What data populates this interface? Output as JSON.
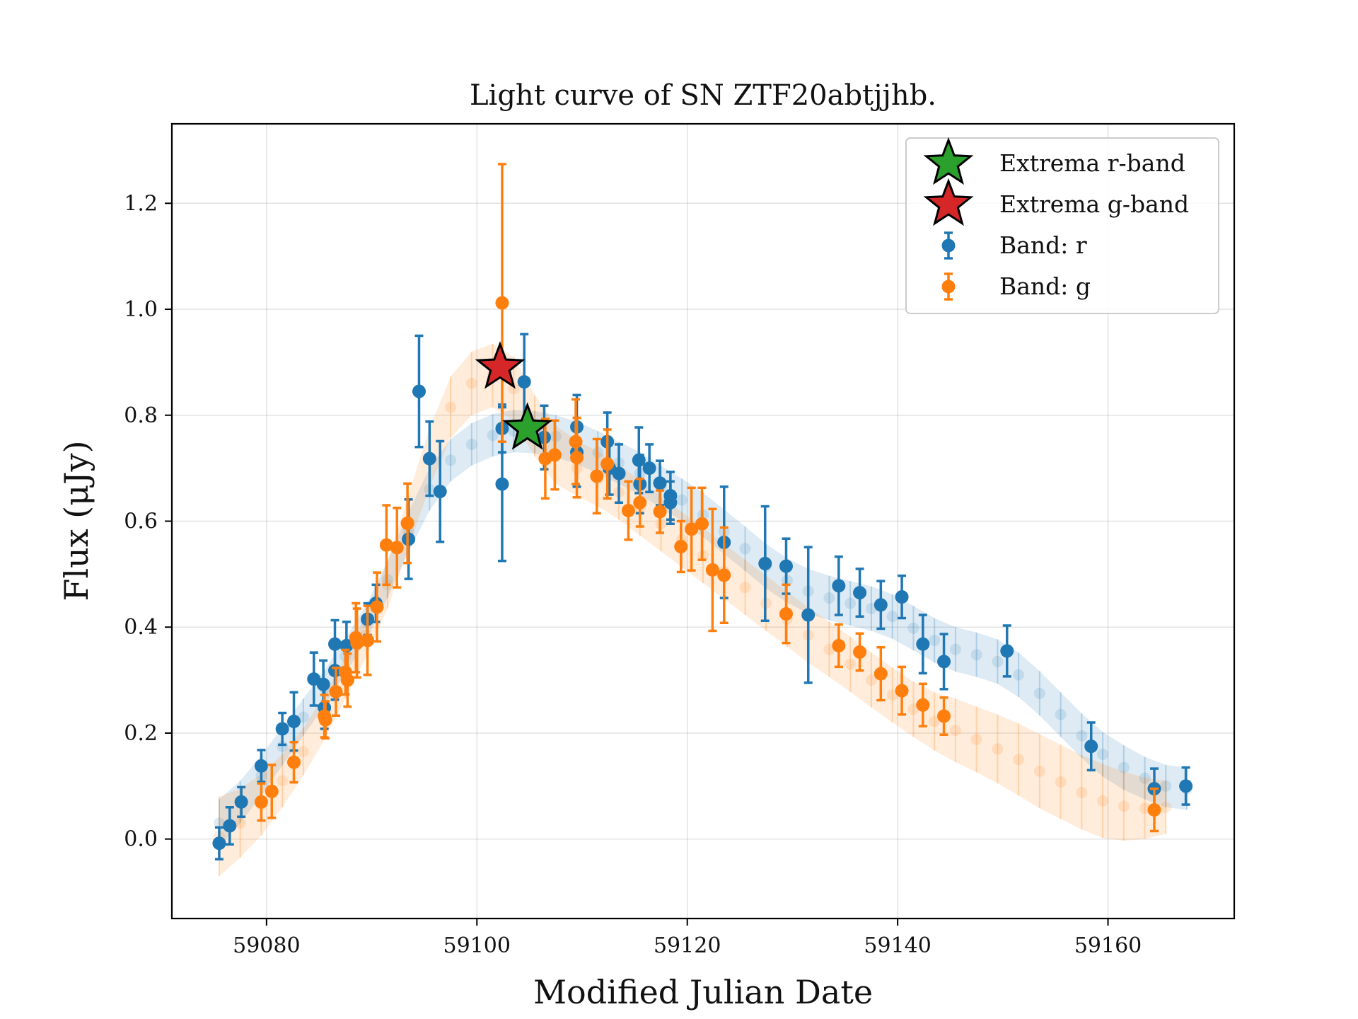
{
  "chart_data": {
    "type": "scatter",
    "title": "Light curve of SN ZTF20abtjjhb.",
    "xlabel": "Modified Julian Date",
    "ylabel": "Flux (μJy)",
    "xlim": [
      59071,
      59172
    ],
    "ylim": [
      -0.15,
      1.35
    ],
    "xticks": [
      59080,
      59100,
      59120,
      59140,
      59160
    ],
    "yticks": [
      0.0,
      0.2,
      0.4,
      0.6,
      0.8,
      1.0,
      1.2
    ],
    "xtick_labels": [
      "59080",
      "59100",
      "59120",
      "59140",
      "59160"
    ],
    "ytick_labels": [
      "0.0",
      "0.2",
      "0.4",
      "0.6",
      "0.8",
      "1.0",
      "1.2"
    ],
    "grid": true,
    "legend_position": "top-right",
    "colors": {
      "r": "#1f77b4",
      "g": "#ff7f0e",
      "extrema_r": "#2ca02c",
      "extrema_g": "#d62728"
    },
    "legend": [
      {
        "label": "Extrema r-band",
        "marker": "star",
        "color": "#2ca02c"
      },
      {
        "label": "Extrema g-band",
        "marker": "star",
        "color": "#d62728"
      },
      {
        "label": "Band: r",
        "marker": "errorbar",
        "color": "#1f77b4"
      },
      {
        "label": "Band: g",
        "marker": "errorbar",
        "color": "#ff7f0e"
      }
    ],
    "series": [
      {
        "name": "Band: r",
        "color": "#1f77b4",
        "points": [
          [
            59075.5,
            -0.008,
            0.03
          ],
          [
            59076.5,
            0.025,
            0.035
          ],
          [
            59077.6,
            0.07,
            0.028
          ],
          [
            59079.5,
            0.138,
            0.03
          ],
          [
            59081.5,
            0.208,
            0.03
          ],
          [
            59082.6,
            0.222,
            0.055
          ],
          [
            59084.5,
            0.302,
            0.05
          ],
          [
            59085.4,
            0.292,
            0.045
          ],
          [
            59085.5,
            0.248,
            0.04
          ],
          [
            59086.5,
            0.318,
            0.055
          ],
          [
            59086.5,
            0.368,
            0.045
          ],
          [
            59087.6,
            0.365,
            0.045
          ],
          [
            59089.6,
            0.415,
            0.03
          ],
          [
            59090.4,
            0.445,
            0.035
          ],
          [
            59093.5,
            0.566,
            0.075
          ],
          [
            59094.5,
            0.845,
            0.105
          ],
          [
            59095.5,
            0.718,
            0.07
          ],
          [
            59096.5,
            0.656,
            0.095
          ],
          [
            59102.4,
            0.775,
            0.045
          ],
          [
            59102.4,
            0.67,
            0.145
          ],
          [
            59104.5,
            0.863,
            0.09
          ],
          [
            59106.4,
            0.758,
            0.06
          ],
          [
            59109.5,
            0.778,
            0.06
          ],
          [
            59109.5,
            0.73,
            0.065
          ],
          [
            59112.4,
            0.75,
            0.055
          ],
          [
            59112.6,
            0.7,
            0.05
          ],
          [
            59113.5,
            0.69,
            0.055
          ],
          [
            59115.4,
            0.715,
            0.062
          ],
          [
            59115.5,
            0.67,
            0.055
          ],
          [
            59116.4,
            0.7,
            0.045
          ],
          [
            59117.4,
            0.672,
            0.042
          ],
          [
            59118.4,
            0.648,
            0.045
          ],
          [
            59118.4,
            0.635,
            0.04
          ],
          [
            59123.5,
            0.56,
            0.105
          ],
          [
            59127.4,
            0.52,
            0.108
          ],
          [
            59129.4,
            0.515,
            0.052
          ],
          [
            59131.5,
            0.423,
            0.128
          ],
          [
            59134.4,
            0.478,
            0.055
          ],
          [
            59136.4,
            0.465,
            0.045
          ],
          [
            59138.4,
            0.442,
            0.045
          ],
          [
            59140.4,
            0.457,
            0.04
          ],
          [
            59142.4,
            0.368,
            0.055
          ],
          [
            59144.4,
            0.335,
            0.052
          ],
          [
            59150.4,
            0.355,
            0.048
          ],
          [
            59158.4,
            0.175,
            0.045
          ],
          [
            59164.4,
            0.095,
            0.038
          ],
          [
            59167.4,
            0.1,
            0.035
          ]
        ]
      },
      {
        "name": "Band: g",
        "color": "#ff7f0e",
        "points": [
          [
            59079.5,
            0.07,
            0.035
          ],
          [
            59080.5,
            0.09,
            0.05
          ],
          [
            59082.6,
            0.145,
            0.038
          ],
          [
            59085.5,
            0.232,
            0.04
          ],
          [
            59085.6,
            0.225,
            0.035
          ],
          [
            59086.6,
            0.278,
            0.045
          ],
          [
            59087.5,
            0.315,
            0.042
          ],
          [
            59087.7,
            0.3,
            0.05
          ],
          [
            59088.5,
            0.38,
            0.065
          ],
          [
            59088.6,
            0.37,
            0.065
          ],
          [
            59089.6,
            0.375,
            0.065
          ],
          [
            59090.5,
            0.438,
            0.065
          ],
          [
            59091.4,
            0.555,
            0.075
          ],
          [
            59092.4,
            0.55,
            0.075
          ],
          [
            59093.4,
            0.596,
            0.075
          ],
          [
            59102.4,
            1.012,
            0.262
          ],
          [
            59106.5,
            0.718,
            0.075
          ],
          [
            59107.4,
            0.725,
            0.065
          ],
          [
            59109.4,
            0.75,
            0.08
          ],
          [
            59109.5,
            0.72,
            0.075
          ],
          [
            59111.4,
            0.685,
            0.07
          ],
          [
            59112.4,
            0.708,
            0.065
          ],
          [
            59114.4,
            0.62,
            0.055
          ],
          [
            59115.5,
            0.635,
            0.045
          ],
          [
            59117.4,
            0.618,
            0.04
          ],
          [
            59119.4,
            0.552,
            0.048
          ],
          [
            59120.4,
            0.585,
            0.078
          ],
          [
            59121.4,
            0.595,
            0.068
          ],
          [
            59122.4,
            0.508,
            0.115
          ],
          [
            59123.5,
            0.498,
            0.09
          ],
          [
            59129.4,
            0.425,
            0.055
          ],
          [
            59134.4,
            0.365,
            0.04
          ],
          [
            59136.4,
            0.353,
            0.035
          ],
          [
            59138.4,
            0.312,
            0.05
          ],
          [
            59140.4,
            0.28,
            0.045
          ],
          [
            59142.4,
            0.253,
            0.04
          ],
          [
            59144.4,
            0.232,
            0.035
          ],
          [
            59164.4,
            0.055,
            0.04
          ]
        ]
      }
    ],
    "models": [
      {
        "band": "r",
        "color": "#1f77b4",
        "points": [
          [
            59075.5,
            0.03,
            0.045
          ],
          [
            59077.5,
            0.07,
            0.04
          ],
          [
            59079.5,
            0.12,
            0.038
          ],
          [
            59081.5,
            0.175,
            0.036
          ],
          [
            59083.5,
            0.23,
            0.035
          ],
          [
            59085.5,
            0.285,
            0.034
          ],
          [
            59087.5,
            0.345,
            0.033
          ],
          [
            59089.5,
            0.41,
            0.033
          ],
          [
            59091.5,
            0.49,
            0.035
          ],
          [
            59093.5,
            0.58,
            0.038
          ],
          [
            59095.5,
            0.66,
            0.04
          ],
          [
            59097.5,
            0.715,
            0.04
          ],
          [
            59099.5,
            0.745,
            0.04
          ],
          [
            59101.5,
            0.762,
            0.04
          ],
          [
            59103.5,
            0.77,
            0.04
          ],
          [
            59105.5,
            0.768,
            0.04
          ],
          [
            59107.5,
            0.76,
            0.04
          ],
          [
            59109.5,
            0.748,
            0.04
          ],
          [
            59111.5,
            0.73,
            0.04
          ],
          [
            59113.5,
            0.71,
            0.04
          ],
          [
            59115.5,
            0.69,
            0.04
          ],
          [
            59117.5,
            0.665,
            0.04
          ],
          [
            59119.5,
            0.64,
            0.04
          ],
          [
            59121.5,
            0.612,
            0.042
          ],
          [
            59123.5,
            0.58,
            0.042
          ],
          [
            59125.5,
            0.548,
            0.042
          ],
          [
            59127.5,
            0.515,
            0.042
          ],
          [
            59129.5,
            0.488,
            0.042
          ],
          [
            59131.5,
            0.468,
            0.042
          ],
          [
            59133.5,
            0.455,
            0.042
          ],
          [
            59135.5,
            0.445,
            0.042
          ],
          [
            59137.5,
            0.435,
            0.042
          ],
          [
            59139.5,
            0.42,
            0.042
          ],
          [
            59141.5,
            0.398,
            0.042
          ],
          [
            59143.5,
            0.375,
            0.042
          ],
          [
            59145.5,
            0.358,
            0.042
          ],
          [
            59147.5,
            0.348,
            0.042
          ],
          [
            59149.5,
            0.335,
            0.042
          ],
          [
            59151.5,
            0.31,
            0.042
          ],
          [
            59153.5,
            0.275,
            0.042
          ],
          [
            59155.5,
            0.235,
            0.042
          ],
          [
            59157.5,
            0.195,
            0.042
          ],
          [
            59159.5,
            0.16,
            0.042
          ],
          [
            59161.5,
            0.135,
            0.042
          ],
          [
            59163.5,
            0.115,
            0.04
          ],
          [
            59165.5,
            0.1,
            0.04
          ],
          [
            59167.5,
            0.095,
            0.04
          ]
        ]
      },
      {
        "band": "g",
        "color": "#ff7f0e",
        "points": [
          [
            59075.5,
            0.005,
            0.075
          ],
          [
            59077.5,
            0.03,
            0.065
          ],
          [
            59079.5,
            0.065,
            0.058
          ],
          [
            59081.5,
            0.11,
            0.05
          ],
          [
            59083.5,
            0.165,
            0.045
          ],
          [
            59085.5,
            0.23,
            0.042
          ],
          [
            59087.5,
            0.305,
            0.04
          ],
          [
            59089.5,
            0.385,
            0.04
          ],
          [
            59091.5,
            0.48,
            0.045
          ],
          [
            59093.5,
            0.6,
            0.05
          ],
          [
            59095.5,
            0.72,
            0.055
          ],
          [
            59097.5,
            0.815,
            0.058
          ],
          [
            59099.5,
            0.86,
            0.06
          ],
          [
            59101.5,
            0.875,
            0.06
          ],
          [
            59103.5,
            0.85,
            0.06
          ],
          [
            59105.5,
            0.78,
            0.058
          ],
          [
            59107.5,
            0.725,
            0.055
          ],
          [
            59109.5,
            0.7,
            0.052
          ],
          [
            59111.5,
            0.68,
            0.052
          ],
          [
            59113.5,
            0.655,
            0.052
          ],
          [
            59115.5,
            0.625,
            0.052
          ],
          [
            59117.5,
            0.595,
            0.052
          ],
          [
            59119.5,
            0.565,
            0.052
          ],
          [
            59121.5,
            0.535,
            0.052
          ],
          [
            59123.5,
            0.505,
            0.052
          ],
          [
            59125.5,
            0.475,
            0.052
          ],
          [
            59127.5,
            0.445,
            0.052
          ],
          [
            59129.5,
            0.415,
            0.052
          ],
          [
            59131.5,
            0.385,
            0.052
          ],
          [
            59133.5,
            0.358,
            0.052
          ],
          [
            59135.5,
            0.33,
            0.052
          ],
          [
            59137.5,
            0.3,
            0.052
          ],
          [
            59139.5,
            0.272,
            0.052
          ],
          [
            59141.5,
            0.245,
            0.052
          ],
          [
            59143.5,
            0.222,
            0.055
          ],
          [
            59145.5,
            0.205,
            0.06
          ],
          [
            59147.5,
            0.188,
            0.062
          ],
          [
            59149.5,
            0.17,
            0.065
          ],
          [
            59151.5,
            0.15,
            0.068
          ],
          [
            59153.5,
            0.128,
            0.07
          ],
          [
            59155.5,
            0.108,
            0.07
          ],
          [
            59157.5,
            0.088,
            0.07
          ],
          [
            59159.5,
            0.072,
            0.07
          ],
          [
            59161.5,
            0.062,
            0.065
          ],
          [
            59163.5,
            0.058,
            0.058
          ],
          [
            59165.5,
            0.06,
            0.05
          ]
        ]
      }
    ],
    "extrema": [
      {
        "band": "g",
        "x": 59102.2,
        "y": 0.89,
        "color": "#d62728"
      },
      {
        "band": "r",
        "x": 59104.8,
        "y": 0.775,
        "color": "#2ca02c"
      }
    ]
  }
}
